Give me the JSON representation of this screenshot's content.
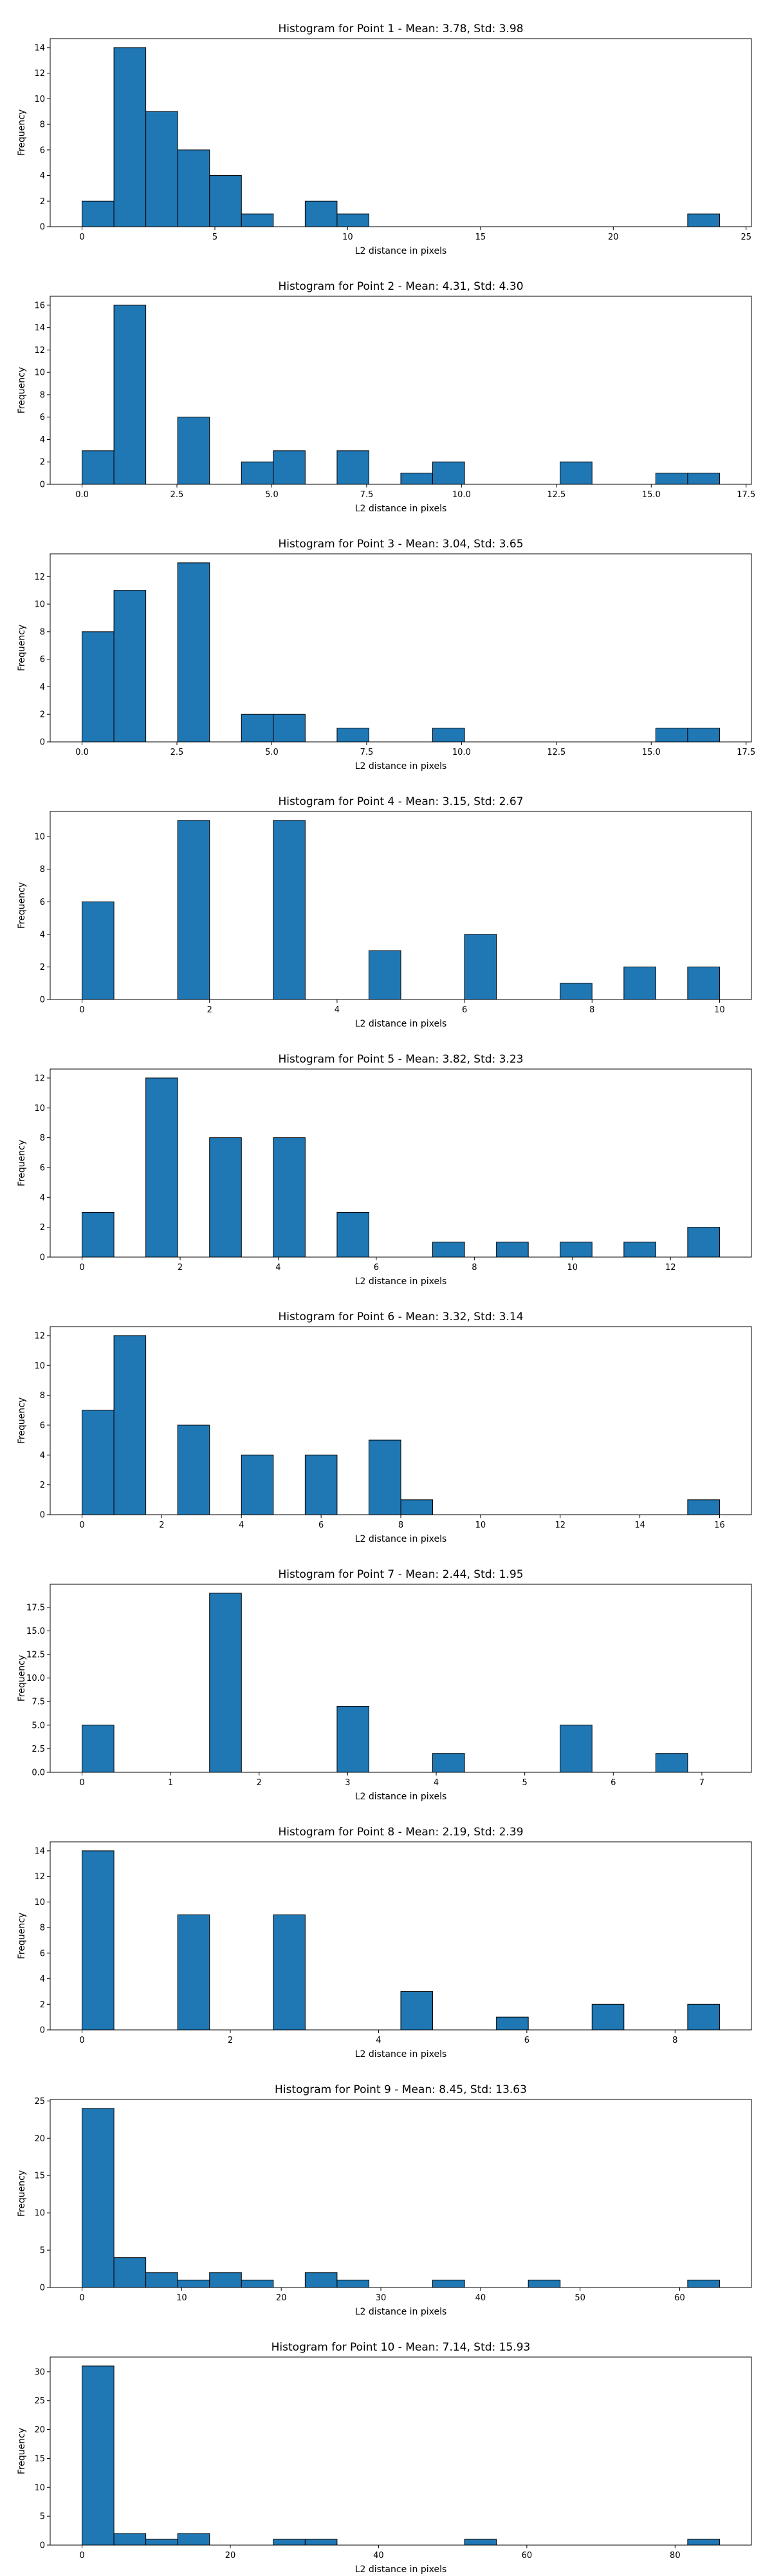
{
  "chart_data": [
    {
      "type": "bar",
      "title": "Histogram for Point 1 - Mean: 3.78, Std: 3.98",
      "xlabel": "L2 distance in pixels",
      "ylabel": "Frequency",
      "xlim": [
        -1.2,
        25.2
      ],
      "ylim": [
        0,
        14.7
      ],
      "xticks": [
        0,
        5,
        10,
        15,
        20,
        25
      ],
      "yticks": [
        0,
        2,
        4,
        6,
        8,
        10,
        12,
        14
      ],
      "bin_edges": [
        0,
        1.2,
        2.4,
        3.6,
        4.8,
        6.0,
        7.2,
        8.4,
        9.6,
        10.8,
        12.0,
        13.2,
        14.4,
        15.6,
        16.8,
        18.0,
        19.2,
        20.4,
        21.6,
        22.8,
        24.0
      ],
      "values": [
        2,
        14,
        9,
        6,
        4,
        1,
        0,
        2,
        1,
        0,
        0,
        0,
        0,
        0,
        0,
        0,
        0,
        0,
        0,
        1
      ],
      "color": "#1f77b4"
    },
    {
      "type": "bar",
      "title": "Histogram for Point 2 - Mean: 4.31, Std: 4.30",
      "xlabel": "L2 distance in pixels",
      "ylabel": "Frequency",
      "xlim": [
        -0.84,
        17.64
      ],
      "ylim": [
        0,
        16.8
      ],
      "xticks": [
        0.0,
        2.5,
        5.0,
        7.5,
        10.0,
        12.5,
        15.0,
        17.5
      ],
      "xtick_labels": [
        "0.0",
        "2.5",
        "5.0",
        "7.5",
        "10.0",
        "12.5",
        "15.0",
        "17.5"
      ],
      "yticks": [
        0,
        2,
        4,
        6,
        8,
        10,
        12,
        14,
        16
      ],
      "bin_edges": [
        0,
        0.84,
        1.68,
        2.52,
        3.36,
        4.2,
        5.04,
        5.88,
        6.72,
        7.56,
        8.4,
        9.24,
        10.08,
        10.92,
        11.76,
        12.6,
        13.44,
        14.28,
        15.12,
        15.96,
        16.8
      ],
      "values": [
        3,
        16,
        0,
        6,
        0,
        2,
        3,
        0,
        3,
        0,
        1,
        2,
        0,
        0,
        0,
        2,
        0,
        0,
        1,
        1
      ],
      "color": "#1f77b4"
    },
    {
      "type": "bar",
      "title": "Histogram for Point 3 - Mean: 3.04, Std: 3.65",
      "xlabel": "L2 distance in pixels",
      "ylabel": "Frequency",
      "xlim": [
        -0.84,
        17.64
      ],
      "ylim": [
        0,
        13.65
      ],
      "xticks": [
        0.0,
        2.5,
        5.0,
        7.5,
        10.0,
        12.5,
        15.0,
        17.5
      ],
      "xtick_labels": [
        "0.0",
        "2.5",
        "5.0",
        "7.5",
        "10.0",
        "12.5",
        "15.0",
        "17.5"
      ],
      "yticks": [
        0,
        2,
        4,
        6,
        8,
        10,
        12
      ],
      "bin_edges": [
        0,
        0.84,
        1.68,
        2.52,
        3.36,
        4.2,
        5.04,
        5.88,
        6.72,
        7.56,
        8.4,
        9.24,
        10.08,
        10.92,
        11.76,
        12.6,
        13.44,
        14.28,
        15.12,
        15.96,
        16.8
      ],
      "values": [
        8,
        11,
        0,
        13,
        0,
        2,
        2,
        0,
        1,
        0,
        0,
        1,
        0,
        0,
        0,
        0,
        0,
        0,
        1,
        1
      ],
      "color": "#1f77b4"
    },
    {
      "type": "bar",
      "title": "Histogram for Point 4 - Mean: 3.15, Std: 2.67",
      "xlabel": "L2 distance in pixels",
      "ylabel": "Frequency",
      "xlim": [
        -0.5,
        10.5
      ],
      "ylim": [
        0,
        11.55
      ],
      "xticks": [
        0,
        2,
        4,
        6,
        8,
        10
      ],
      "yticks": [
        0,
        2,
        4,
        6,
        8,
        10
      ],
      "bin_edges": [
        0,
        0.5,
        1.0,
        1.5,
        2.0,
        2.5,
        3.0,
        3.5,
        4.0,
        4.5,
        5.0,
        5.5,
        6.0,
        6.5,
        7.0,
        7.5,
        8.0,
        8.5,
        9.0,
        9.5,
        10.0
      ],
      "values": [
        6,
        0,
        0,
        11,
        0,
        0,
        11,
        0,
        0,
        3,
        0,
        0,
        4,
        0,
        0,
        1,
        0,
        2,
        0,
        2
      ],
      "color": "#1f77b4"
    },
    {
      "type": "bar",
      "title": "Histogram for Point 5 - Mean: 3.82, Std: 3.23",
      "xlabel": "L2 distance in pixels",
      "ylabel": "Frequency",
      "xlim": [
        -0.65,
        13.65
      ],
      "ylim": [
        0,
        12.6
      ],
      "xticks": [
        0,
        2,
        4,
        6,
        8,
        10,
        12
      ],
      "yticks": [
        0,
        2,
        4,
        6,
        8,
        10,
        12
      ],
      "bin_edges": [
        0,
        0.65,
        1.3,
        1.95,
        2.6,
        3.25,
        3.9,
        4.55,
        5.2,
        5.85,
        6.5,
        7.15,
        7.8,
        8.45,
        9.1,
        9.75,
        10.4,
        11.05,
        11.7,
        12.35,
        13.0
      ],
      "values": [
        3,
        0,
        12,
        0,
        8,
        0,
        8,
        0,
        3,
        0,
        0,
        1,
        0,
        1,
        0,
        1,
        0,
        1,
        0,
        2
      ],
      "color": "#1f77b4"
    },
    {
      "type": "bar",
      "title": "Histogram for Point 6 - Mean: 3.32, Std: 3.14",
      "xlabel": "L2 distance in pixels",
      "ylabel": "Frequency",
      "xlim": [
        -0.8,
        16.8
      ],
      "ylim": [
        0,
        12.6
      ],
      "xticks": [
        0,
        2,
        4,
        6,
        8,
        10,
        12,
        14,
        16
      ],
      "yticks": [
        0,
        2,
        4,
        6,
        8,
        10,
        12
      ],
      "bin_edges": [
        0,
        0.8,
        1.6,
        2.4,
        3.2,
        4.0,
        4.8,
        5.6,
        6.4,
        7.2,
        8.0,
        8.8,
        9.6,
        10.4,
        11.2,
        12.0,
        12.8,
        13.6,
        14.4,
        15.2,
        16.0
      ],
      "values": [
        7,
        12,
        0,
        6,
        0,
        4,
        0,
        4,
        0,
        5,
        1,
        0,
        0,
        0,
        0,
        0,
        0,
        0,
        0,
        1
      ],
      "color": "#1f77b4"
    },
    {
      "type": "bar",
      "title": "Histogram for Point 7 - Mean: 2.44, Std: 1.95",
      "xlabel": "L2 distance in pixels",
      "ylabel": "Frequency",
      "xlim": [
        -0.36,
        7.56
      ],
      "ylim": [
        0,
        19.95
      ],
      "xticks": [
        0,
        1,
        2,
        3,
        4,
        5,
        6,
        7
      ],
      "yticks": [
        0.0,
        2.5,
        5.0,
        7.5,
        10.0,
        12.5,
        15.0,
        17.5
      ],
      "ytick_labels": [
        "0.0",
        "2.5",
        "5.0",
        "7.5",
        "10.0",
        "12.5",
        "15.0",
        "17.5"
      ],
      "bin_edges": [
        0,
        0.36,
        0.72,
        1.08,
        1.44,
        1.8,
        2.16,
        2.52,
        2.88,
        3.24,
        3.6,
        3.96,
        4.32,
        4.68,
        5.04,
        5.4,
        5.76,
        6.12,
        6.48,
        6.84,
        7.2
      ],
      "values": [
        5,
        0,
        0,
        0,
        19,
        0,
        0,
        0,
        7,
        0,
        0,
        2,
        0,
        0,
        0,
        5,
        0,
        0,
        2,
        0
      ],
      "color": "#1f77b4"
    },
    {
      "type": "bar",
      "title": "Histogram for Point 8 - Mean: 2.19, Std: 2.39",
      "xlabel": "L2 distance in pixels",
      "ylabel": "Frequency",
      "xlim": [
        -0.43,
        9.03
      ],
      "ylim": [
        0,
        14.7
      ],
      "xticks": [
        0,
        2,
        4,
        6,
        8
      ],
      "yticks": [
        0,
        2,
        4,
        6,
        8,
        10,
        12,
        14
      ],
      "bin_edges": [
        0,
        0.43,
        0.86,
        1.29,
        1.72,
        2.15,
        2.58,
        3.01,
        3.44,
        3.87,
        4.3,
        4.73,
        5.16,
        5.59,
        6.02,
        6.45,
        6.88,
        7.31,
        7.74,
        8.17,
        8.6
      ],
      "values": [
        14,
        0,
        0,
        9,
        0,
        0,
        9,
        0,
        0,
        0,
        3,
        0,
        0,
        1,
        0,
        0,
        2,
        0,
        0,
        2
      ],
      "color": "#1f77b4"
    },
    {
      "type": "bar",
      "title": "Histogram for Point 9 - Mean: 8.45, Std: 13.63",
      "xlabel": "L2 distance in pixels",
      "ylabel": "Frequency",
      "xlim": [
        -3.2,
        67.2
      ],
      "ylim": [
        0,
        25.2
      ],
      "xticks": [
        0,
        10,
        20,
        30,
        40,
        50,
        60
      ],
      "yticks": [
        0,
        5,
        10,
        15,
        20,
        25
      ],
      "bin_edges": [
        0,
        3.2,
        6.4,
        9.6,
        12.8,
        16.0,
        19.2,
        22.4,
        25.6,
        28.8,
        32.0,
        35.2,
        38.4,
        41.6,
        44.8,
        48.0,
        51.2,
        54.4,
        57.6,
        60.8,
        64.0
      ],
      "values": [
        24,
        4,
        2,
        1,
        2,
        1,
        0,
        2,
        1,
        0,
        0,
        1,
        0,
        0,
        1,
        0,
        0,
        0,
        0,
        1
      ],
      "color": "#1f77b4"
    },
    {
      "type": "bar",
      "title": "Histogram for Point 10 - Mean: 7.14, Std: 15.93",
      "xlabel": "L2 distance in pixels",
      "ylabel": "Frequency",
      "xlim": [
        -4.3,
        90.3
      ],
      "ylim": [
        0,
        32.55
      ],
      "xticks": [
        0,
        20,
        40,
        60,
        80
      ],
      "yticks": [
        0,
        5,
        10,
        15,
        20,
        25,
        30
      ],
      "bin_edges": [
        0,
        4.3,
        8.6,
        12.9,
        17.2,
        21.5,
        25.8,
        30.1,
        34.4,
        38.7,
        43.0,
        47.3,
        51.6,
        55.9,
        60.2,
        64.5,
        68.8,
        73.1,
        77.4,
        81.7,
        86.0
      ],
      "values": [
        31,
        2,
        1,
        2,
        0,
        0,
        1,
        1,
        0,
        0,
        0,
        0,
        1,
        0,
        0,
        0,
        0,
        0,
        0,
        1
      ],
      "color": "#1f77b4"
    }
  ]
}
